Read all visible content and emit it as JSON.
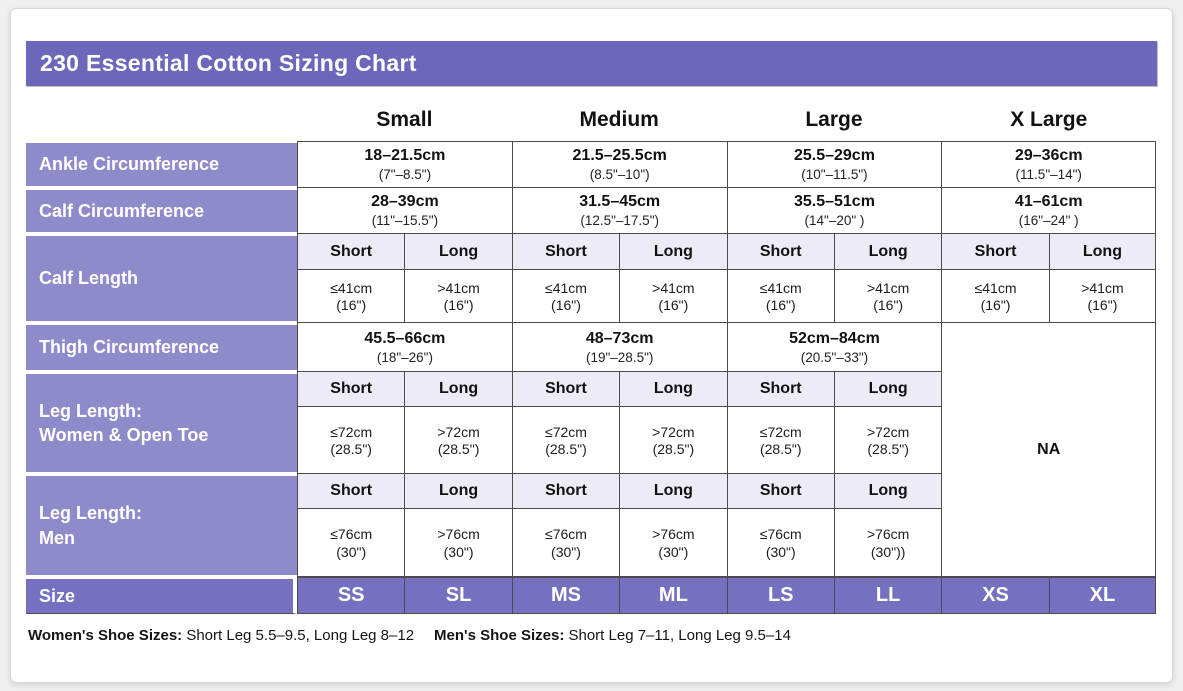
{
  "page": {
    "title": "230 Essential Cotton Sizing Chart"
  },
  "colors": {
    "title_bar": "#6c67bb",
    "row_label_purple": "#8f8bcb",
    "size_row_purple": "#7571c0",
    "subheader_lavender": "#edecf6",
    "grid_border": "#4b4b4b"
  },
  "columns": {
    "sizes": [
      "Small",
      "Medium",
      "Large",
      "X Large"
    ]
  },
  "labels": {
    "short": "Short",
    "long": "Long"
  },
  "rows": {
    "ankle": {
      "label": "Ankle Circumference",
      "values": [
        {
          "cm": "18–21.5cm",
          "in": "(7\"–8.5\")"
        },
        {
          "cm": "21.5–25.5cm",
          "in": "(8.5\"–10\")"
        },
        {
          "cm": "25.5–29cm",
          "in": "(10\"–11.5\")"
        },
        {
          "cm": "29–36cm",
          "in": "(11.5\"–14\")"
        }
      ]
    },
    "calf_circumference": {
      "label": "Calf Circumference",
      "values": [
        {
          "cm": "28–39cm",
          "in": "(11\"–15.5\")"
        },
        {
          "cm": "31.5–45cm",
          "in": "(12.5\"–17.5\")"
        },
        {
          "cm": "35.5–51cm",
          "in": "(14\"–20\" )"
        },
        {
          "cm": "41–61cm",
          "in": "(16\"–24\" )"
        }
      ]
    },
    "calf_length": {
      "label": "Calf Length",
      "cells": [
        {
          "cm": "≤41cm",
          "in": "(16\")"
        },
        {
          "cm": ">41cm",
          "in": "(16\")"
        },
        {
          "cm": "≤41cm",
          "in": "(16\")"
        },
        {
          "cm": ">41cm",
          "in": "(16\")"
        },
        {
          "cm": "≤41cm",
          "in": "(16\")"
        },
        {
          "cm": ">41cm",
          "in": "(16\")"
        },
        {
          "cm": "≤41cm",
          "in": "(16\")"
        },
        {
          "cm": ">41cm",
          "in": "(16\")"
        }
      ]
    },
    "thigh": {
      "label": "Thigh Circumference",
      "values": [
        {
          "cm": "45.5–66cm",
          "in": "(18\"–26\")"
        },
        {
          "cm": "48–73cm",
          "in": "(19\"–28.5\")"
        },
        {
          "cm": "52cm–84cm",
          "in": "(20.5\"–33\")"
        }
      ],
      "na": "NA"
    },
    "leg_women": {
      "label_line1": "Leg Length:",
      "label_line2": "Women & Open Toe",
      "cells": [
        {
          "cm": "≤72cm",
          "in": "(28.5\")"
        },
        {
          "cm": ">72cm",
          "in": "(28.5\")"
        },
        {
          "cm": "≤72cm",
          "in": "(28.5\")"
        },
        {
          "cm": ">72cm",
          "in": "(28.5\")"
        },
        {
          "cm": "≤72cm",
          "in": "(28.5\")"
        },
        {
          "cm": ">72cm",
          "in": "(28.5\")"
        }
      ]
    },
    "leg_men": {
      "label_line1": "Leg Length:",
      "label_line2": "Men",
      "cells": [
        {
          "cm": "≤76cm",
          "in": "(30\")"
        },
        {
          "cm": ">76cm",
          "in": "(30\")"
        },
        {
          "cm": "≤76cm",
          "in": "(30\")"
        },
        {
          "cm": ">76cm",
          "in": "(30\")"
        },
        {
          "cm": "≤76cm",
          "in": "(30\")"
        },
        {
          "cm": ">76cm",
          "in": "(30\"))"
        }
      ]
    },
    "size": {
      "label": "Size",
      "values": [
        "SS",
        "SL",
        "MS",
        "ML",
        "LS",
        "LL",
        "XS",
        "XL"
      ]
    }
  },
  "footer": {
    "women_label": "Women's Shoe Sizes:",
    "women_text": " Short Leg 5.5–9.5, Long Leg 8–12",
    "men_label": "Men's Shoe Sizes:",
    "men_text": " Short Leg 7–11, Long Leg 9.5–14"
  }
}
